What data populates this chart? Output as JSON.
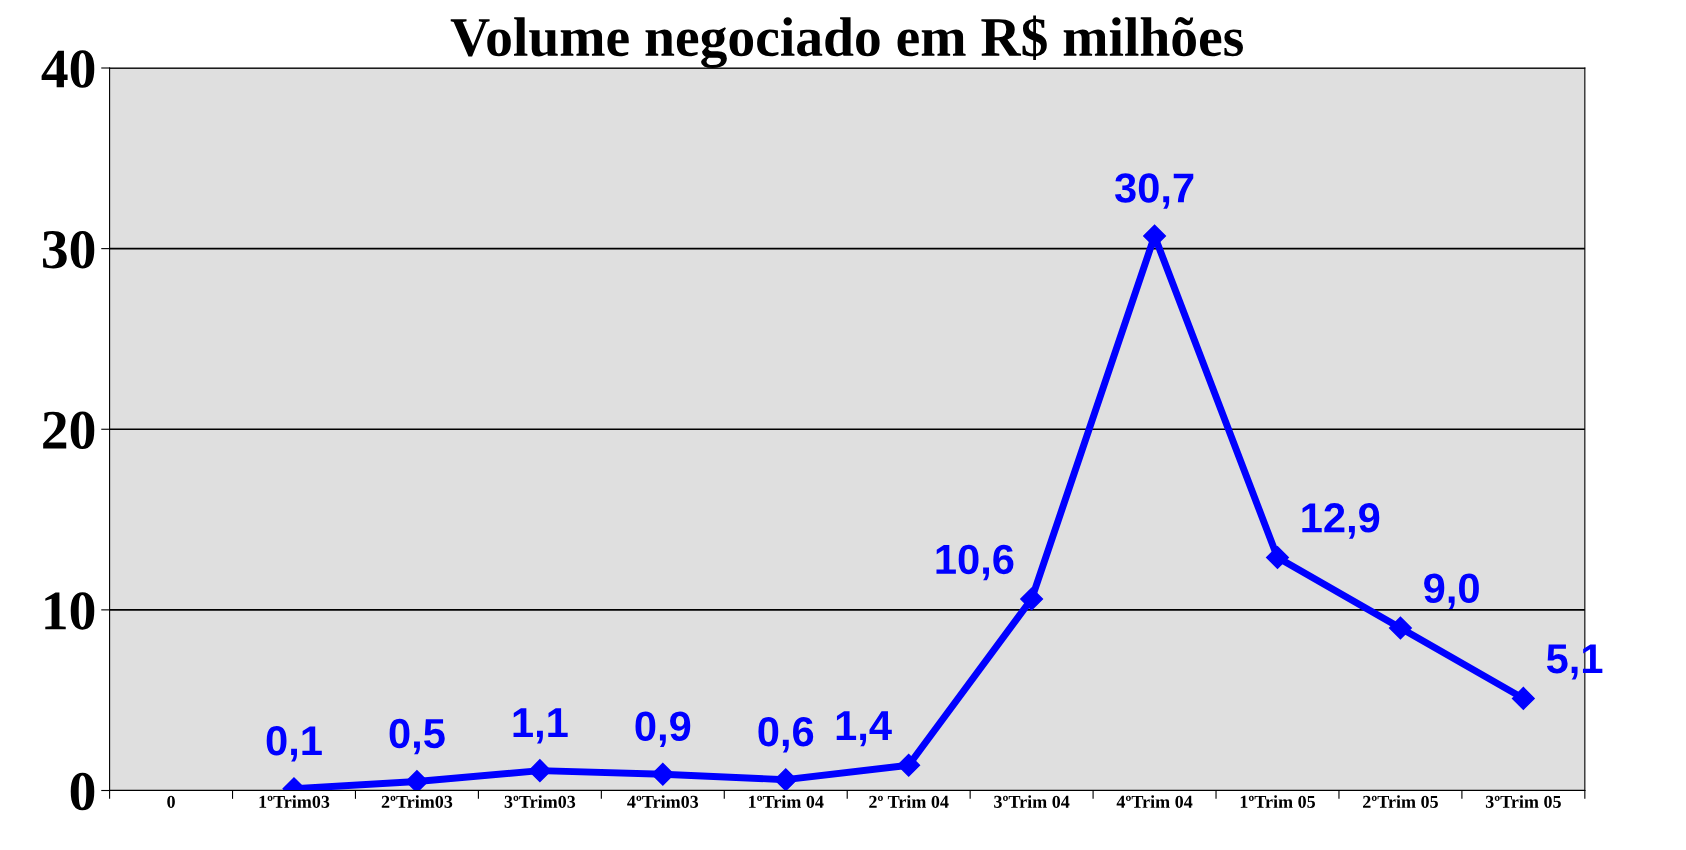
{
  "chart_data": {
    "type": "line",
    "title": "Volume negociado em R$ milhões",
    "categories": [
      "0",
      "1ºTrim03",
      "2ºTrim03",
      "3ºTrim03",
      "4ºTrim03",
      "1ºTrim 04",
      "2º Trim 04",
      "3ºTrim 04",
      "4ºTrim 04",
      "1ºTrim 05",
      "2ºTrim 05",
      "3ºTrim 05"
    ],
    "series": [
      {
        "color": "#0000ff",
        "values": [
          null,
          0.1,
          0.5,
          1.1,
          0.9,
          0.6,
          1.4,
          10.6,
          30.7,
          12.9,
          9.0,
          5.1
        ],
        "value_labels": [
          null,
          "0,1",
          "0,5",
          "1,1",
          "0,9",
          "0,6",
          "1,4",
          "10,6",
          "30,7",
          "12,9",
          "9,0",
          "5,1"
        ]
      }
    ],
    "ylim": [
      0,
      40
    ],
    "yticks": [
      0,
      10,
      20,
      30,
      40
    ],
    "grid": "y",
    "marker": "diamond",
    "line_style": "solid",
    "legend": false
  }
}
